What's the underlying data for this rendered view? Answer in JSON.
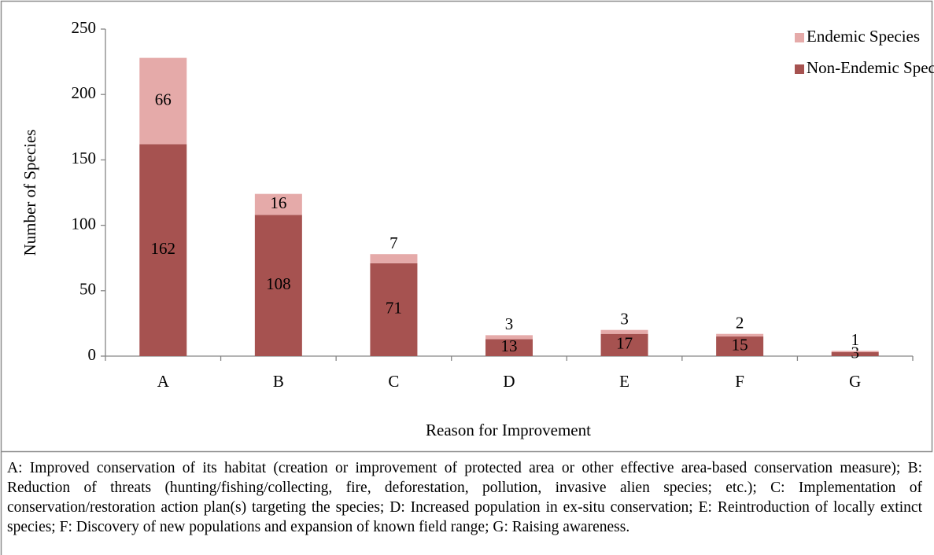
{
  "chart_data": {
    "type": "stacked_bar",
    "y_label": "Number of Species",
    "x_label": "Reason for Improvement",
    "categories": [
      "A",
      "B",
      "C",
      "D",
      "E",
      "F",
      "G"
    ],
    "series": [
      {
        "name": "Non-Endemic Species",
        "color": "#a65250",
        "values": [
          162,
          108,
          71,
          13,
          17,
          15,
          3
        ]
      },
      {
        "name": "Endemic Species",
        "color": "#e5aaa9",
        "values": [
          66,
          16,
          7,
          3,
          3,
          2,
          1
        ]
      }
    ],
    "ylim": [
      0,
      250
    ],
    "yticks": [
      0,
      50,
      100,
      150,
      200,
      250
    ],
    "legend": "upper right",
    "grid": false
  },
  "caption": "A: Improved conservation of its habitat (creation or improvement of protected area or other effective area-based conservation measure); B: Reduction of threats (hunting/fishing/collecting, fire, deforestation, pollution, invasive alien species; etc.); C: Implementation of conservation/restoration action plan(s) targeting the species; D: Increased population in ex-situ conservation; E: Reintroduction of locally extinct species; F: Discovery of new populations and expansion of known field range; G: Raising awareness."
}
